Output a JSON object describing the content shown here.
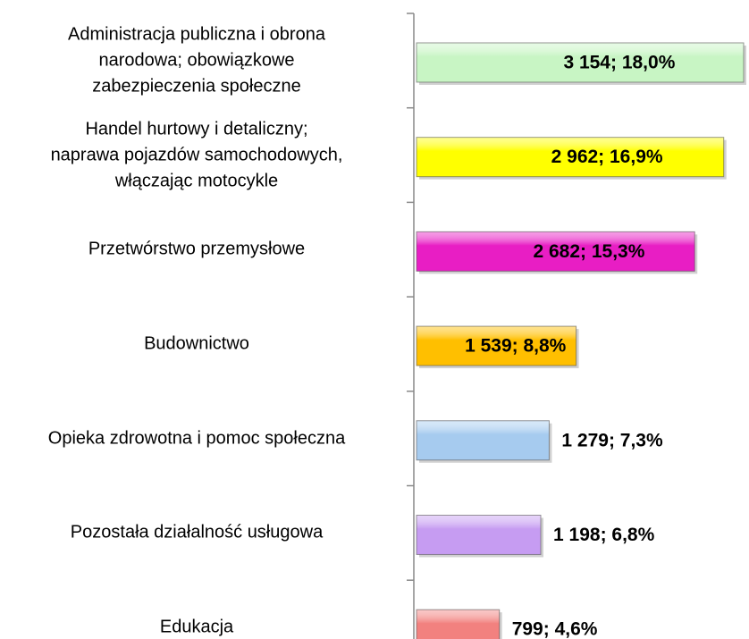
{
  "chart_data": {
    "type": "bar",
    "orientation": "horizontal",
    "categories": [
      "Administracja publiczna i obrona\nnarodowa; obowiązkowe\nzabezpieczenia społeczne",
      "Handel hurtowy i detaliczny;\nnaprawa pojazdów samochodowych,\nwłączając motocykle",
      "Przetwórstwo przemysłowe",
      "Budownictwo",
      "Opieka zdrowotna i pomoc społeczna",
      "Pozostała działalność usługowa",
      "Edukacja"
    ],
    "values": [
      3154,
      2962,
      2682,
      1539,
      1279,
      1198,
      799
    ],
    "value_labels": [
      "3 154; 18,0%",
      "2 962; 16,9%",
      "2 682; 15,3%",
      "1 539; 8,8%",
      "1 279; 7,3%",
      "1 198; 6,8%",
      "799; 4,6%"
    ],
    "colors": [
      "#c8f5c4",
      "#ffff00",
      "#e81ec4",
      "#ffbf00",
      "#a6cbef",
      "#c69cf2",
      "#f2817f"
    ]
  }
}
